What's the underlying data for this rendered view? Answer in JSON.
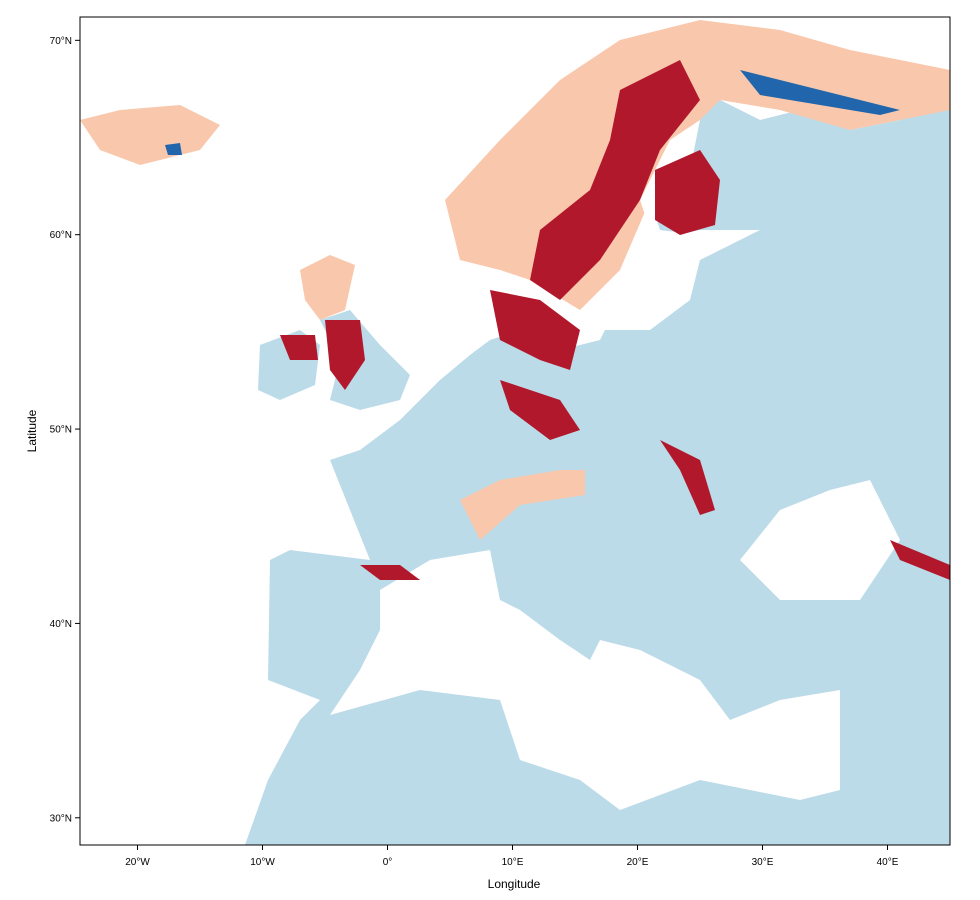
{
  "chart_data": {
    "type": "map",
    "xlabel": "Longitude",
    "ylabel": "Latitude",
    "xlim": [
      -24.6,
      45
    ],
    "ylim": [
      28.6,
      71.2
    ],
    "xticks": [
      {
        "value": -20,
        "label": "20°W"
      },
      {
        "value": -10,
        "label": "10°W"
      },
      {
        "value": 0,
        "label": "0°"
      },
      {
        "value": 10,
        "label": "10°E"
      },
      {
        "value": 20,
        "label": "20°E"
      },
      {
        "value": 30,
        "label": "30°E"
      },
      {
        "value": 40,
        "label": "40°E"
      }
    ],
    "yticks": [
      {
        "value": 30,
        "label": "30°N"
      },
      {
        "value": 40,
        "label": "40°N"
      },
      {
        "value": 50,
        "label": "50°N"
      },
      {
        "value": 60,
        "label": "60°N"
      },
      {
        "value": 70,
        "label": "70°N"
      }
    ]
  }
}
